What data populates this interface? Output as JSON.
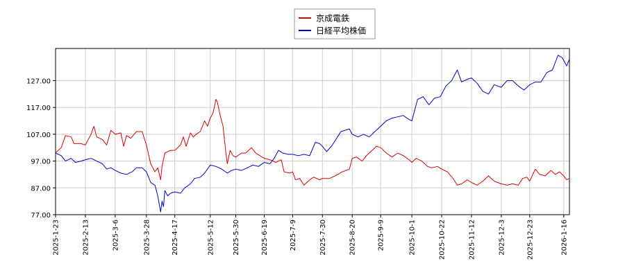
{
  "chart_data": {
    "type": "line",
    "title": "",
    "xlabel": "",
    "ylabel": "",
    "ylim": [
      77,
      139
    ],
    "yticks": [
      "77.00",
      "87.00",
      "97.00",
      "107.00",
      "117.00",
      "127.00"
    ],
    "ytick_values": [
      77,
      87,
      97,
      107,
      117,
      127
    ],
    "xticks": [
      "2025-1-23",
      "2025-2-13",
      "2025-3-6",
      "2025-3-28",
      "2025-4-17",
      "2025-5-12",
      "2025-5-30",
      "2025-6-19",
      "2025-7-9",
      "2025-7-30",
      "2025-8-20",
      "2025-9-9",
      "2025-10-1",
      "2025-10-22",
      "2025-11-12",
      "2025-12-3",
      "2025-12-23",
      "2026-1-16"
    ],
    "xlim": [
      "2025-1-23",
      "2026-1-20"
    ],
    "grid": true,
    "legend_position": "top-center",
    "series": [
      {
        "name": "京成電鉄",
        "color": "#dd0000",
        "points": [
          [
            "2025-1-23",
            100.0
          ],
          [
            "2025-1-27",
            102.0
          ],
          [
            "2025-1-30",
            106.5
          ],
          [
            "2025-2-3",
            106.0
          ],
          [
            "2025-2-5",
            103.5
          ],
          [
            "2025-2-10",
            103.5
          ],
          [
            "2025-2-13",
            103.0
          ],
          [
            "2025-2-17",
            107.0
          ],
          [
            "2025-2-19",
            110.0
          ],
          [
            "2025-2-21",
            106.0
          ],
          [
            "2025-2-25",
            105.0
          ],
          [
            "2025-2-28",
            103.0
          ],
          [
            "2025-3-3",
            108.5
          ],
          [
            "2025-3-6",
            107.0
          ],
          [
            "2025-3-10",
            107.5
          ],
          [
            "2025-3-12",
            102.5
          ],
          [
            "2025-3-14",
            106.5
          ],
          [
            "2025-3-17",
            105.5
          ],
          [
            "2025-3-21",
            108.0
          ],
          [
            "2025-3-25",
            108.0
          ],
          [
            "2025-3-28",
            103.0
          ],
          [
            "2025-3-31",
            96.0
          ],
          [
            "2025-4-3",
            93.0
          ],
          [
            "2025-4-5",
            94.5
          ],
          [
            "2025-4-7",
            90.0
          ],
          [
            "2025-4-8",
            95.0
          ],
          [
            "2025-4-10",
            100.0
          ],
          [
            "2025-4-14",
            101.0
          ],
          [
            "2025-4-17",
            101.0
          ],
          [
            "2025-4-21",
            103.0
          ],
          [
            "2025-4-23",
            106.0
          ],
          [
            "2025-4-25",
            102.5
          ],
          [
            "2025-4-28",
            107.5
          ],
          [
            "2025-4-30",
            106.0
          ],
          [
            "2025-5-2",
            107.0
          ],
          [
            "2025-5-5",
            108.0
          ],
          [
            "2025-5-8",
            112.0
          ],
          [
            "2025-5-10",
            110.0
          ],
          [
            "2025-5-12",
            113.0
          ],
          [
            "2025-5-14",
            115.0
          ],
          [
            "2025-5-16",
            120.0
          ],
          [
            "2025-5-17",
            119.0
          ],
          [
            "2025-5-19",
            114.0
          ],
          [
            "2025-5-21",
            110.0
          ],
          [
            "2025-5-23",
            100.0
          ],
          [
            "2025-5-24",
            96.0
          ],
          [
            "2025-5-26",
            101.0
          ],
          [
            "2025-5-28",
            99.0
          ],
          [
            "2025-5-30",
            98.5
          ],
          [
            "2025-6-3",
            100.0
          ],
          [
            "2025-6-6",
            100.0
          ],
          [
            "2025-6-10",
            102.0
          ],
          [
            "2025-6-13",
            100.0
          ],
          [
            "2025-6-16",
            99.0
          ],
          [
            "2025-6-19",
            98.0
          ],
          [
            "2025-6-23",
            97.5
          ],
          [
            "2025-6-27",
            96.5
          ],
          [
            "2025-7-1",
            97.5
          ],
          [
            "2025-7-3",
            93.0
          ],
          [
            "2025-7-7",
            92.5
          ],
          [
            "2025-7-9",
            93.0
          ],
          [
            "2025-7-11",
            90.0
          ],
          [
            "2025-7-14",
            90.5
          ],
          [
            "2025-7-17",
            88.0
          ],
          [
            "2025-7-21",
            90.0
          ],
          [
            "2025-7-24",
            91.0
          ],
          [
            "2025-7-28",
            90.0
          ],
          [
            "2025-7-30",
            90.5
          ],
          [
            "2025-8-4",
            90.5
          ],
          [
            "2025-8-8",
            91.5
          ],
          [
            "2025-8-13",
            93.0
          ],
          [
            "2025-8-18",
            94.0
          ],
          [
            "2025-8-20",
            98.0
          ],
          [
            "2025-8-23",
            98.5
          ],
          [
            "2025-8-27",
            97.0
          ],
          [
            "2025-8-30",
            99.0
          ],
          [
            "2025-9-3",
            101.0
          ],
          [
            "2025-9-6",
            102.5
          ],
          [
            "2025-9-9",
            102.0
          ],
          [
            "2025-9-13",
            100.0
          ],
          [
            "2025-9-17",
            98.5
          ],
          [
            "2025-9-21",
            100.0
          ],
          [
            "2025-9-25",
            99.0
          ],
          [
            "2025-9-29",
            97.5
          ],
          [
            "2025-10-1",
            96.5
          ],
          [
            "2025-10-4",
            98.0
          ],
          [
            "2025-10-8",
            97.0
          ],
          [
            "2025-10-12",
            95.0
          ],
          [
            "2025-10-15",
            94.5
          ],
          [
            "2025-10-19",
            95.0
          ],
          [
            "2025-10-22",
            94.0
          ],
          [
            "2025-10-26",
            93.0
          ],
          [
            "2025-10-30",
            90.5
          ],
          [
            "2025-11-2",
            88.0
          ],
          [
            "2025-11-5",
            88.5
          ],
          [
            "2025-11-9",
            90.0
          ],
          [
            "2025-11-12",
            89.0
          ],
          [
            "2025-11-16",
            88.0
          ],
          [
            "2025-11-20",
            89.5
          ],
          [
            "2025-11-24",
            91.5
          ],
          [
            "2025-11-28",
            89.5
          ],
          [
            "2025-12-3",
            88.5
          ],
          [
            "2025-12-7",
            88.0
          ],
          [
            "2025-12-11",
            88.5
          ],
          [
            "2025-12-15",
            88.0
          ],
          [
            "2025-12-18",
            90.5
          ],
          [
            "2025-12-21",
            91.0
          ],
          [
            "2025-12-23",
            89.5
          ],
          [
            "2025-12-27",
            94.0
          ],
          [
            "2025-12-30",
            92.0
          ],
          [
            "2026-1-3",
            91.5
          ],
          [
            "2026-1-7",
            93.5
          ],
          [
            "2026-1-10",
            92.0
          ],
          [
            "2026-1-13",
            93.0
          ],
          [
            "2026-1-16",
            91.5
          ],
          [
            "2026-1-18",
            90.0
          ],
          [
            "2026-1-20",
            90.5
          ]
        ]
      },
      {
        "name": "日経平均株価",
        "color": "#0000cc",
        "points": [
          [
            "2025-1-23",
            100.0
          ],
          [
            "2025-1-27",
            99.0
          ],
          [
            "2025-1-30",
            97.0
          ],
          [
            "2025-2-3",
            98.0
          ],
          [
            "2025-2-6",
            96.5
          ],
          [
            "2025-2-10",
            97.0
          ],
          [
            "2025-2-13",
            97.5
          ],
          [
            "2025-2-17",
            98.0
          ],
          [
            "2025-2-21",
            97.0
          ],
          [
            "2025-2-25",
            96.0
          ],
          [
            "2025-2-28",
            94.0
          ],
          [
            "2025-3-3",
            94.5
          ],
          [
            "2025-3-6",
            93.5
          ],
          [
            "2025-3-10",
            92.5
          ],
          [
            "2025-3-14",
            92.0
          ],
          [
            "2025-3-18",
            93.0
          ],
          [
            "2025-3-21",
            94.5
          ],
          [
            "2025-3-25",
            94.5
          ],
          [
            "2025-3-28",
            93.0
          ],
          [
            "2025-3-31",
            89.0
          ],
          [
            "2025-4-3",
            88.0
          ],
          [
            "2025-4-5",
            84.0
          ],
          [
            "2025-4-7",
            78.0
          ],
          [
            "2025-4-8",
            82.0
          ],
          [
            "2025-4-9",
            80.0
          ],
          [
            "2025-4-10",
            86.0
          ],
          [
            "2025-4-12",
            84.0
          ],
          [
            "2025-4-14",
            85.0
          ],
          [
            "2025-4-17",
            85.5
          ],
          [
            "2025-4-21",
            85.0
          ],
          [
            "2025-4-24",
            87.0
          ],
          [
            "2025-4-28",
            88.5
          ],
          [
            "2025-5-1",
            90.5
          ],
          [
            "2025-5-5",
            91.0
          ],
          [
            "2025-5-8",
            92.5
          ],
          [
            "2025-5-12",
            95.5
          ],
          [
            "2025-5-16",
            95.0
          ],
          [
            "2025-5-20",
            94.0
          ],
          [
            "2025-5-24",
            92.5
          ],
          [
            "2025-5-27",
            93.5
          ],
          [
            "2025-5-30",
            94.0
          ],
          [
            "2025-6-3",
            93.5
          ],
          [
            "2025-6-7",
            94.5
          ],
          [
            "2025-6-11",
            95.5
          ],
          [
            "2025-6-15",
            95.0
          ],
          [
            "2025-6-19",
            96.5
          ],
          [
            "2025-6-23",
            96.0
          ],
          [
            "2025-6-26",
            98.0
          ],
          [
            "2025-6-29",
            101.0
          ],
          [
            "2025-7-2",
            100.0
          ],
          [
            "2025-7-6",
            99.5
          ],
          [
            "2025-7-9",
            99.5
          ],
          [
            "2025-7-13",
            99.0
          ],
          [
            "2025-7-17",
            99.5
          ],
          [
            "2025-7-21",
            99.0
          ],
          [
            "2025-7-25",
            104.0
          ],
          [
            "2025-7-28",
            103.5
          ],
          [
            "2025-7-30",
            102.5
          ],
          [
            "2025-8-2",
            100.5
          ],
          [
            "2025-8-6",
            103.0
          ],
          [
            "2025-8-9",
            105.5
          ],
          [
            "2025-8-12",
            108.0
          ],
          [
            "2025-8-15",
            108.5
          ],
          [
            "2025-8-18",
            109.0
          ],
          [
            "2025-8-20",
            107.0
          ],
          [
            "2025-8-24",
            106.0
          ],
          [
            "2025-8-28",
            107.0
          ],
          [
            "2025-9-1",
            106.0
          ],
          [
            "2025-9-5",
            108.0
          ],
          [
            "2025-9-9",
            110.0
          ],
          [
            "2025-9-13",
            112.0
          ],
          [
            "2025-9-17",
            113.0
          ],
          [
            "2025-9-21",
            113.5
          ],
          [
            "2025-9-25",
            114.0
          ],
          [
            "2025-9-29",
            112.5
          ],
          [
            "2025-10-1",
            112.0
          ],
          [
            "2025-10-5",
            120.0
          ],
          [
            "2025-10-9",
            121.0
          ],
          [
            "2025-10-13",
            118.0
          ],
          [
            "2025-10-17",
            120.5
          ],
          [
            "2025-10-21",
            121.0
          ],
          [
            "2025-10-25",
            125.0
          ],
          [
            "2025-10-29",
            127.0
          ],
          [
            "2025-11-2",
            131.0
          ],
          [
            "2025-11-5",
            126.5
          ],
          [
            "2025-11-9",
            127.5
          ],
          [
            "2025-11-12",
            128.0
          ],
          [
            "2025-11-16",
            126.0
          ],
          [
            "2025-11-20",
            123.0
          ],
          [
            "2025-11-24",
            122.0
          ],
          [
            "2025-11-28",
            125.5
          ],
          [
            "2025-12-3",
            124.5
          ],
          [
            "2025-12-7",
            127.0
          ],
          [
            "2025-12-11",
            127.0
          ],
          [
            "2025-12-15",
            125.0
          ],
          [
            "2025-12-19",
            123.5
          ],
          [
            "2025-12-23",
            125.5
          ],
          [
            "2025-12-27",
            126.5
          ],
          [
            "2025-12-31",
            126.5
          ],
          [
            "2026-1-4",
            130.0
          ],
          [
            "2026-1-8",
            131.0
          ],
          [
            "2026-1-12",
            136.5
          ],
          [
            "2026-1-15",
            135.5
          ],
          [
            "2026-1-18",
            132.5
          ],
          [
            "2026-1-20",
            135.0
          ]
        ]
      }
    ]
  }
}
